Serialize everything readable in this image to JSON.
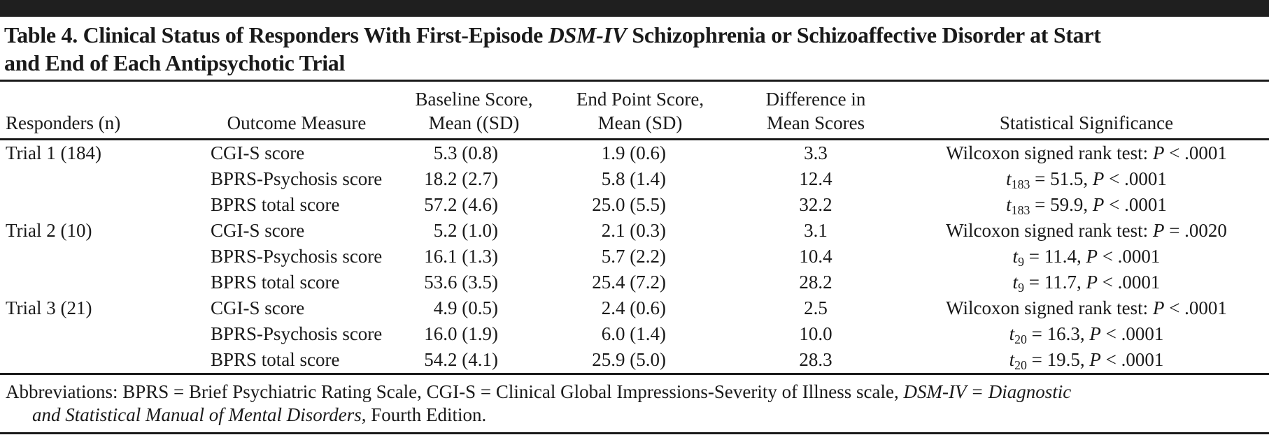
{
  "colors": {
    "text": "#1a1a1a",
    "background": "#ffffff",
    "rule": "#1a1a1a",
    "top_bar": "#1f1f1f"
  },
  "title_lines": [
    [
      {
        "t": "Table 4. Clinical Status of Responders With First-Episode ",
        "s": "b"
      },
      {
        "t": "DSM-IV",
        "s": "bi"
      },
      {
        "t": " Schizophrenia or Schizoaffective Disorder at Start",
        "s": "b"
      }
    ],
    [
      {
        "t": "and End of Each Antipsychotic Trial",
        "s": "b"
      }
    ]
  ],
  "table": {
    "headers": [
      {
        "lines": [
          "Responders (n)"
        ]
      },
      {
        "lines": [
          "Outcome Measure"
        ]
      },
      {
        "lines": [
          "Baseline Score,",
          "Mean ((SD)"
        ]
      },
      {
        "lines": [
          "End Point Score,",
          "Mean (SD)"
        ]
      },
      {
        "lines": [
          "Difference in",
          "Mean Scores"
        ]
      },
      {
        "lines": [
          "Statistical Significance"
        ]
      }
    ],
    "rows": [
      {
        "responders": "Trial 1 (184)",
        "outcome": "CGI-S score",
        "baseline": "5.3 (0.8)",
        "endpoint": "1.9 (0.6)",
        "difference": "3.3",
        "significance": [
          {
            "t": "Wilcoxon signed rank test: "
          },
          {
            "t": "P",
            "s": "i"
          },
          {
            "t": " < .0001"
          }
        ]
      },
      {
        "responders": "",
        "outcome": "BPRS-Psychosis score",
        "baseline": "18.2 (2.7)",
        "endpoint": "5.8 (1.4)",
        "difference": "12.4",
        "significance": [
          {
            "t": "t",
            "s": "i"
          },
          {
            "t": "183",
            "s": "sub"
          },
          {
            "t": " = 51.5, "
          },
          {
            "t": "P",
            "s": "i"
          },
          {
            "t": " < .0001"
          }
        ]
      },
      {
        "responders": "",
        "outcome": "BPRS total score",
        "baseline": "57.2 (4.6)",
        "endpoint": "25.0 (5.5)",
        "difference": "32.2",
        "significance": [
          {
            "t": "t",
            "s": "i"
          },
          {
            "t": "183",
            "s": "sub"
          },
          {
            "t": " = 59.9, "
          },
          {
            "t": "P",
            "s": "i"
          },
          {
            "t": " < .0001"
          }
        ]
      },
      {
        "responders": "Trial 2 (10)",
        "outcome": "CGI-S score",
        "baseline": "5.2 (1.0)",
        "endpoint": "2.1 (0.3)",
        "difference": "3.1",
        "significance": [
          {
            "t": "Wilcoxon signed rank test: "
          },
          {
            "t": "P",
            "s": "i"
          },
          {
            "t": " = .0020"
          }
        ]
      },
      {
        "responders": "",
        "outcome": "BPRS-Psychosis score",
        "baseline": "16.1 (1.3)",
        "endpoint": "5.7 (2.2)",
        "difference": "10.4",
        "significance": [
          {
            "t": "t",
            "s": "i"
          },
          {
            "t": "9",
            "s": "sub"
          },
          {
            "t": " = 11.4, "
          },
          {
            "t": "P",
            "s": "i"
          },
          {
            "t": " < .0001"
          }
        ]
      },
      {
        "responders": "",
        "outcome": "BPRS total score",
        "baseline": "53.6 (3.5)",
        "endpoint": "25.4 (7.2)",
        "difference": "28.2",
        "significance": [
          {
            "t": "t",
            "s": "i"
          },
          {
            "t": "9",
            "s": "sub"
          },
          {
            "t": " = 11.7, "
          },
          {
            "t": "P",
            "s": "i"
          },
          {
            "t": " < .0001"
          }
        ]
      },
      {
        "responders": "Trial 3 (21)",
        "outcome": "CGI-S score",
        "baseline": "4.9 (0.5)",
        "endpoint": "2.4 (0.6)",
        "difference": "2.5",
        "significance": [
          {
            "t": "Wilcoxon signed rank test: "
          },
          {
            "t": "P",
            "s": "i"
          },
          {
            "t": " < .0001"
          }
        ]
      },
      {
        "responders": "",
        "outcome": "BPRS-Psychosis score",
        "baseline": "16.0 (1.9)",
        "endpoint": "6.0 (1.4)",
        "difference": "10.0",
        "significance": [
          {
            "t": "t",
            "s": "i"
          },
          {
            "t": "20",
            "s": "sub"
          },
          {
            "t": " = 16.3, "
          },
          {
            "t": "P",
            "s": "i"
          },
          {
            "t": " < .0001"
          }
        ]
      },
      {
        "responders": "",
        "outcome": "BPRS total score",
        "baseline": "54.2 (4.1)",
        "endpoint": "25.9 (5.0)",
        "difference": "28.3",
        "significance": [
          {
            "t": "t",
            "s": "i"
          },
          {
            "t": "20",
            "s": "sub"
          },
          {
            "t": " = 19.5, "
          },
          {
            "t": "P",
            "s": "i"
          },
          {
            "t": " < .0001"
          }
        ]
      }
    ]
  },
  "footnote_lines": [
    [
      {
        "t": "Abbreviations: BPRS = Brief Psychiatric Rating Scale, CGI-S = Clinical Global Impressions-Severity of Illness scale, "
      },
      {
        "t": "DSM-IV",
        "s": "i"
      },
      {
        "t": " = ",
        "s": "i"
      },
      {
        "t": "Diagnostic",
        "s": "i"
      }
    ],
    [
      {
        "t": "and Statistical Manual of Mental Disorders",
        "s": "i"
      },
      {
        "t": ", Fourth Edition."
      }
    ]
  ]
}
